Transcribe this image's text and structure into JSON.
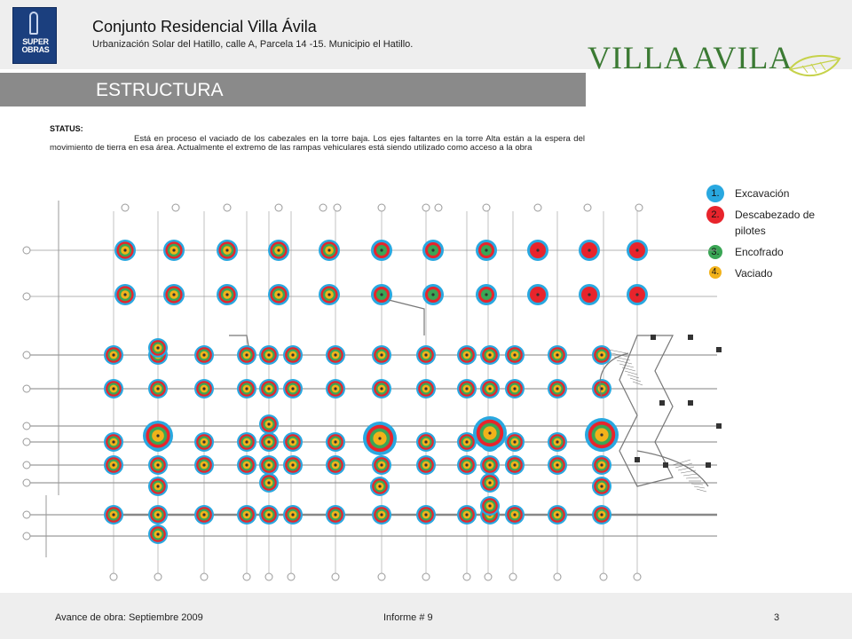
{
  "header": {
    "logo_lines": [
      "SUPER",
      "OBRAS"
    ],
    "title": "Conjunto Residencial Villa Ávila",
    "subtitle": "Urbanización Solar del Hatillo, calle A, Parcela 14 -15. Municipio el Hatillo.",
    "brand": "VILLA AVILA"
  },
  "section": {
    "title": "ESTRUCTURA"
  },
  "status": {
    "label": "STATUS:",
    "text": "Está en proceso el vaciado de los cabezales en la torre baja. Los ejes faltantes en la torre Alta están a la espera del movimiento de tierra en esa área. Actualmente el extremo de las rampas vehiculares está siendo utilizado como acceso a la obra"
  },
  "legend": [
    {
      "num": "1.",
      "label": "Excavación",
      "color": "#29a8e0"
    },
    {
      "num": "2.",
      "label": "Descabezado de pilotes",
      "color": "#e8242c"
    },
    {
      "num": "3.",
      "label": "Encofrado",
      "color": "#3aa655"
    },
    {
      "num": "4.",
      "label": "Vaciado",
      "color": "#f2b21a"
    }
  ],
  "footer": {
    "left": "Avance de obra: Septiembre 2009",
    "center": "Informe # 9",
    "page": "3"
  },
  "colors": {
    "excavacion": "#29a8e0",
    "descabezado": "#e8242c",
    "encofrado": "#3aa655",
    "vaciado": "#f2b21a",
    "bar": "#8a8a8a",
    "brand_green": "#3b7a33"
  }
}
